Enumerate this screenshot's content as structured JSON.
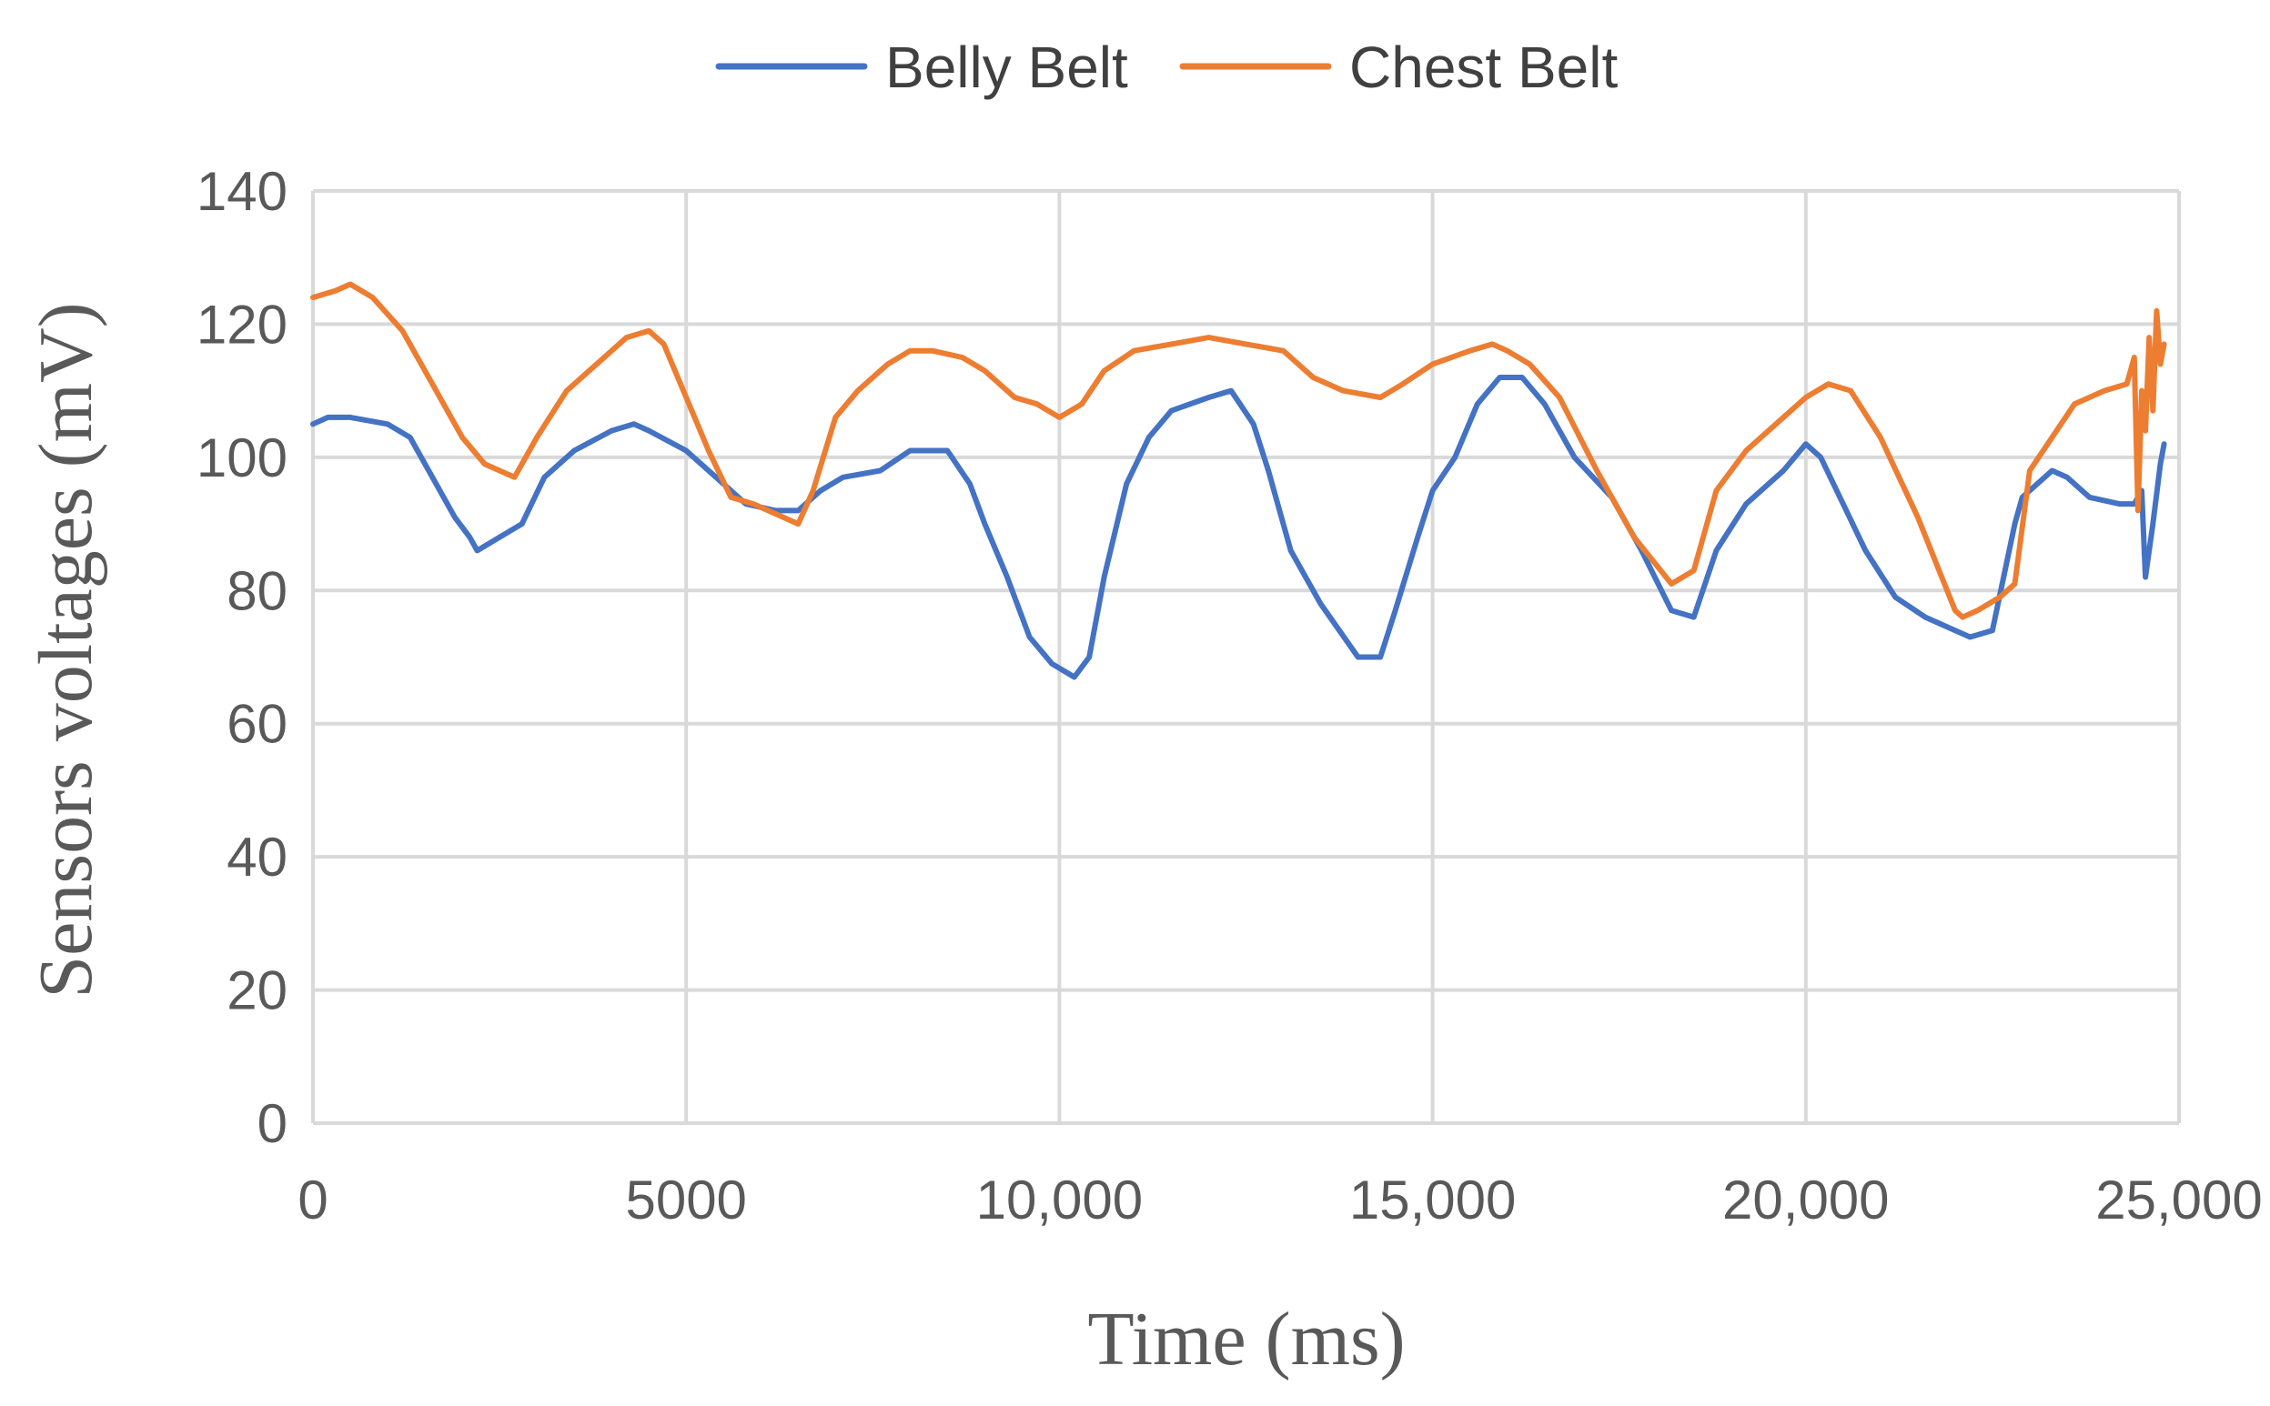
{
  "chart_data": {
    "type": "line",
    "title": "",
    "xlabel": "Time (ms)",
    "ylabel": "Sensors voltages (mV)",
    "xlim": [
      0,
      25000
    ],
    "ylim": [
      0,
      140
    ],
    "x_ticks": [
      0,
      5000,
      10000,
      15000,
      20000,
      25000
    ],
    "x_tick_labels": [
      "0",
      "5000",
      "10,000",
      "15,000",
      "20,000",
      "25,000"
    ],
    "y_ticks": [
      0,
      20,
      40,
      60,
      80,
      100,
      120,
      140
    ],
    "y_tick_labels": [
      "0",
      "20",
      "40",
      "60",
      "80",
      "100",
      "120",
      "140"
    ],
    "grid": true,
    "legend": "top-center",
    "series": [
      {
        "name": "Belly Belt",
        "color": "#4472C4",
        "x": [
          0,
          200,
          500,
          1000,
          1300,
          1600,
          1900,
          2100,
          2200,
          2500,
          2800,
          3100,
          3500,
          4000,
          4300,
          4500,
          5000,
          5500,
          5800,
          6200,
          6500,
          6800,
          7100,
          7600,
          8000,
          8500,
          8800,
          9000,
          9300,
          9600,
          9900,
          10200,
          10400,
          10600,
          10900,
          11200,
          11500,
          12000,
          12300,
          12600,
          12800,
          13100,
          13500,
          14000,
          14300,
          14500,
          14800,
          15000,
          15300,
          15600,
          15900,
          16200,
          16500,
          16900,
          17400,
          17800,
          18200,
          18500,
          18800,
          19200,
          19700,
          20000,
          20200,
          20500,
          20800,
          21200,
          21600,
          22000,
          22200,
          22500,
          22800,
          22900,
          23100,
          23300,
          23500,
          23800,
          24200,
          24400,
          24500,
          24550,
          24650,
          24750,
          24800
        ],
        "values": [
          105,
          106,
          106,
          105,
          103,
          97,
          91,
          88,
          86,
          88,
          90,
          97,
          101,
          104,
          105,
          104,
          101,
          96,
          93,
          92,
          92,
          95,
          97,
          98,
          101,
          101,
          96,
          90,
          82,
          73,
          69,
          67,
          70,
          82,
          96,
          103,
          107,
          109,
          110,
          105,
          98,
          86,
          78,
          70,
          70,
          77,
          88,
          95,
          100,
          108,
          112,
          112,
          108,
          100,
          94,
          86,
          77,
          76,
          86,
          93,
          98,
          102,
          100,
          93,
          86,
          79,
          76,
          74,
          73,
          74,
          90,
          94,
          96,
          98,
          97,
          94,
          93,
          93,
          95,
          82,
          90,
          99,
          102
        ]
      },
      {
        "name": "Chest Belt",
        "color": "#ED7D31",
        "x": [
          0,
          300,
          500,
          800,
          1200,
          1600,
          2000,
          2300,
          2500,
          2700,
          3000,
          3400,
          3800,
          4200,
          4500,
          4700,
          5000,
          5300,
          5600,
          5900,
          6300,
          6500,
          6700,
          7000,
          7300,
          7700,
          8000,
          8300,
          8700,
          9000,
          9400,
          9700,
          10000,
          10300,
          10600,
          11000,
          11500,
          12000,
          12500,
          13000,
          13400,
          13800,
          14300,
          14600,
          15000,
          15500,
          15800,
          16000,
          16300,
          16700,
          17200,
          17700,
          18200,
          18500,
          18800,
          19200,
          19600,
          20000,
          20300,
          20600,
          21000,
          21500,
          22000,
          22100,
          22300,
          22600,
          22800,
          23000,
          23300,
          23600,
          24000,
          24300,
          24400,
          24450,
          24500,
          24550,
          24600,
          24650,
          24700,
          24750,
          24800
        ],
        "values": [
          124,
          125,
          126,
          124,
          119,
          111,
          103,
          99,
          98,
          97,
          103,
          110,
          114,
          118,
          119,
          117,
          109,
          101,
          94,
          93,
          91,
          90,
          95,
          106,
          110,
          114,
          116,
          116,
          115,
          113,
          109,
          108,
          106,
          108,
          113,
          116,
          117,
          118,
          117,
          116,
          112,
          110,
          109,
          111,
          114,
          116,
          117,
          116,
          114,
          109,
          98,
          88,
          81,
          83,
          95,
          101,
          105,
          109,
          111,
          110,
          103,
          91,
          77,
          76,
          77,
          79,
          81,
          98,
          103,
          108,
          110,
          111,
          115,
          92,
          110,
          104,
          118,
          107,
          122,
          114,
          117
        ]
      }
    ]
  }
}
